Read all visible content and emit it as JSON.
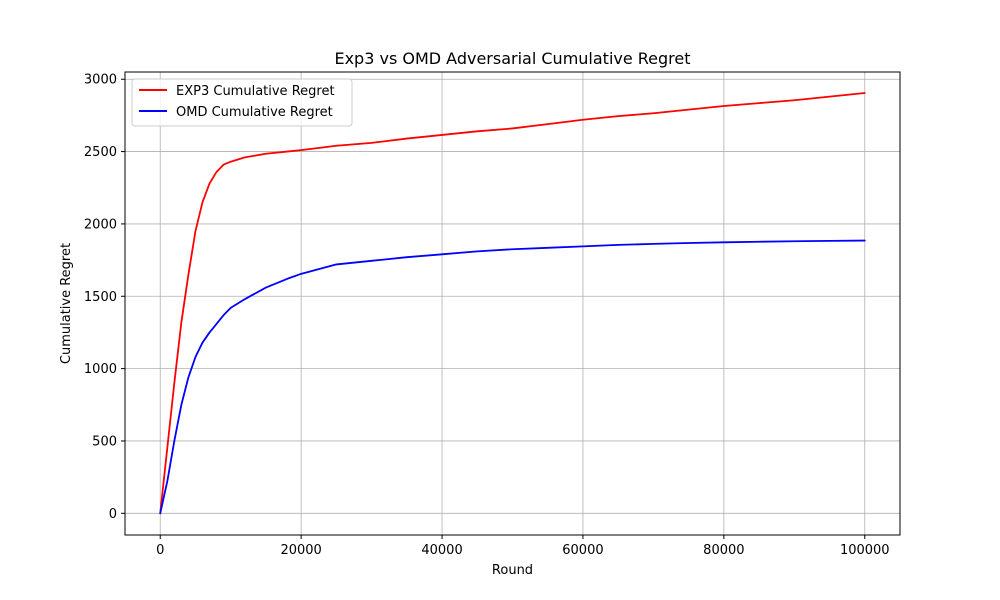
{
  "chart_data": {
    "type": "line",
    "title": "Exp3 vs OMD Adversarial Cumulative Regret",
    "xlabel": "Round",
    "ylabel": "Cumulative Regret",
    "xlim": [
      -5000,
      105000
    ],
    "ylim": [
      -150,
      3050
    ],
    "xticks": [
      0,
      20000,
      40000,
      60000,
      80000,
      100000
    ],
    "xtick_labels": [
      "0",
      "20000",
      "40000",
      "60000",
      "80000",
      "100000"
    ],
    "yticks": [
      0,
      500,
      1000,
      1500,
      2000,
      2500,
      3000
    ],
    "ytick_labels": [
      "0",
      "500",
      "1000",
      "1500",
      "2000",
      "2500",
      "3000"
    ],
    "grid": true,
    "legend_position": "top-left",
    "series": [
      {
        "name": "EXP3 Cumulative Regret",
        "color": "#ff0000",
        "x": [
          0,
          1000,
          2000,
          3000,
          4000,
          5000,
          6000,
          7000,
          8000,
          9000,
          10000,
          12000,
          15000,
          18000,
          20000,
          25000,
          30000,
          35000,
          40000,
          45000,
          50000,
          55000,
          60000,
          65000,
          70000,
          75000,
          80000,
          85000,
          90000,
          95000,
          100000
        ],
        "y": [
          0,
          450,
          900,
          1320,
          1650,
          1950,
          2150,
          2280,
          2360,
          2410,
          2430,
          2460,
          2485,
          2500,
          2510,
          2540,
          2560,
          2590,
          2615,
          2640,
          2660,
          2690,
          2720,
          2745,
          2765,
          2790,
          2815,
          2835,
          2855,
          2880,
          2905
        ]
      },
      {
        "name": "OMD Cumulative Regret",
        "color": "#0000ff",
        "x": [
          0,
          1000,
          2000,
          3000,
          4000,
          5000,
          6000,
          7000,
          8000,
          9000,
          10000,
          12000,
          15000,
          18000,
          20000,
          25000,
          30000,
          35000,
          40000,
          45000,
          50000,
          55000,
          60000,
          65000,
          70000,
          75000,
          80000,
          85000,
          90000,
          95000,
          100000
        ],
        "y": [
          0,
          220,
          500,
          750,
          940,
          1080,
          1180,
          1250,
          1310,
          1370,
          1420,
          1480,
          1560,
          1620,
          1655,
          1720,
          1745,
          1770,
          1790,
          1810,
          1825,
          1835,
          1845,
          1855,
          1862,
          1868,
          1873,
          1877,
          1880,
          1883,
          1885
        ]
      }
    ]
  }
}
